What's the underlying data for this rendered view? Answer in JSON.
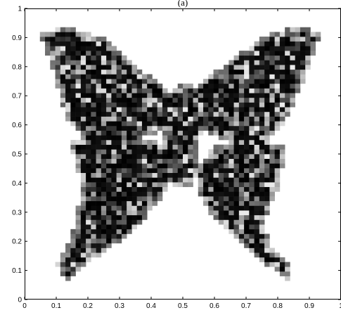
{
  "chart_data": {
    "type": "heatmap",
    "title": "(a)",
    "xlabel": "",
    "ylabel": "",
    "xlim": [
      0,
      1
    ],
    "ylim": [
      0,
      1
    ],
    "xticks": [
      0,
      0.1,
      0.2,
      0.3,
      0.4,
      0.5,
      0.6,
      0.7,
      0.8,
      0.9,
      1
    ],
    "xtick_labels": [
      "0",
      "0.1",
      "0.2",
      "0.3",
      "0.4",
      "0.5",
      "0.6",
      "0.7",
      "0.8",
      "0.9",
      "1"
    ],
    "yticks": [
      0,
      0.1,
      0.2,
      0.3,
      0.4,
      0.5,
      0.6,
      0.7,
      0.8,
      0.9,
      1
    ],
    "ytick_labels": [
      "0",
      "0.1",
      "0.2",
      "0.3",
      "0.4",
      "0.5",
      "0.6",
      "0.7",
      "0.8",
      "0.9",
      "1"
    ],
    "grid": false,
    "colormap": "gray",
    "shape_description": "butterfly-shaped region of dark grayscale pixels on a white background",
    "region": {
      "upper_left_wing": [
        [
          0.05,
          0.91
        ],
        [
          0.12,
          0.94
        ],
        [
          0.25,
          0.9
        ],
        [
          0.38,
          0.78
        ],
        [
          0.45,
          0.72
        ],
        [
          0.47,
          0.6
        ],
        [
          0.4,
          0.56
        ],
        [
          0.3,
          0.55
        ],
        [
          0.18,
          0.57
        ],
        [
          0.13,
          0.62
        ],
        [
          0.1,
          0.75
        ]
      ],
      "upper_right_wing": [
        [
          0.53,
          0.72
        ],
        [
          0.6,
          0.78
        ],
        [
          0.75,
          0.9
        ],
        [
          0.86,
          0.94
        ],
        [
          0.94,
          0.92
        ],
        [
          0.9,
          0.8
        ],
        [
          0.86,
          0.7
        ],
        [
          0.82,
          0.6
        ],
        [
          0.76,
          0.55
        ],
        [
          0.66,
          0.53
        ],
        [
          0.56,
          0.58
        ]
      ],
      "body": [
        [
          0.43,
          0.65
        ],
        [
          0.48,
          0.74
        ],
        [
          0.53,
          0.74
        ],
        [
          0.56,
          0.64
        ],
        [
          0.55,
          0.45
        ],
        [
          0.52,
          0.38
        ],
        [
          0.47,
          0.38
        ],
        [
          0.44,
          0.46
        ]
      ],
      "lower_left_wing": [
        [
          0.14,
          0.55
        ],
        [
          0.28,
          0.57
        ],
        [
          0.42,
          0.55
        ],
        [
          0.47,
          0.46
        ],
        [
          0.44,
          0.35
        ],
        [
          0.36,
          0.26
        ],
        [
          0.3,
          0.2
        ],
        [
          0.22,
          0.14
        ],
        [
          0.14,
          0.06
        ],
        [
          0.1,
          0.12
        ],
        [
          0.16,
          0.25
        ],
        [
          0.18,
          0.4
        ]
      ],
      "lower_right_wing": [
        [
          0.55,
          0.46
        ],
        [
          0.6,
          0.53
        ],
        [
          0.74,
          0.55
        ],
        [
          0.83,
          0.52
        ],
        [
          0.8,
          0.38
        ],
        [
          0.76,
          0.28
        ],
        [
          0.77,
          0.2
        ],
        [
          0.84,
          0.11
        ],
        [
          0.84,
          0.06
        ],
        [
          0.75,
          0.13
        ],
        [
          0.68,
          0.2
        ],
        [
          0.58,
          0.3
        ],
        [
          0.55,
          0.38
        ]
      ]
    },
    "colors": {
      "background": "#ffffff",
      "dark": "#000000",
      "light": "#e8e8e8"
    }
  }
}
